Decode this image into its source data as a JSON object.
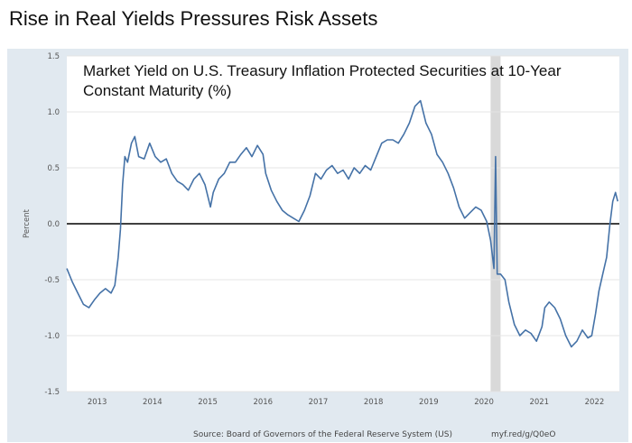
{
  "header": {
    "title": "Rise in Real Yields Pressures Risk Assets"
  },
  "chart_data": {
    "type": "line",
    "title": "Market Yield on U.S. Treasury Inflation Protected Securities at 10-Year",
    "title_line2": "Constant Maturity (%)",
    "xlabel": "",
    "ylabel": "Percent",
    "ylim": [
      -1.5,
      1.5
    ],
    "xlim": [
      2012.45,
      2022.45
    ],
    "y_ticks": [
      "1.5",
      "1.0",
      "0.5",
      "0.0",
      "-0.5",
      "-1.0",
      "-1.5"
    ],
    "x_ticks": [
      "2013",
      "2014",
      "2015",
      "2016",
      "2017",
      "2018",
      "2019",
      "2020",
      "2021",
      "2022"
    ],
    "grid": true,
    "line_color": "#4572a7",
    "zero_line": true,
    "recession_shading": {
      "start": 2020.12,
      "end": 2020.3,
      "color": "#d9d9d9"
    },
    "series": [
      {
        "values": [
          [
            2012.45,
            -0.4
          ],
          [
            2012.55,
            -0.52
          ],
          [
            2012.65,
            -0.62
          ],
          [
            2012.75,
            -0.72
          ],
          [
            2012.85,
            -0.75
          ],
          [
            2012.95,
            -0.68
          ],
          [
            2013.05,
            -0.62
          ],
          [
            2013.15,
            -0.58
          ],
          [
            2013.25,
            -0.62
          ],
          [
            2013.32,
            -0.55
          ],
          [
            2013.38,
            -0.3
          ],
          [
            2013.42,
            -0.05
          ],
          [
            2013.46,
            0.35
          ],
          [
            2013.5,
            0.6
          ],
          [
            2013.55,
            0.55
          ],
          [
            2013.62,
            0.72
          ],
          [
            2013.68,
            0.78
          ],
          [
            2013.75,
            0.6
          ],
          [
            2013.85,
            0.58
          ],
          [
            2013.95,
            0.72
          ],
          [
            2014.05,
            0.6
          ],
          [
            2014.15,
            0.55
          ],
          [
            2014.25,
            0.58
          ],
          [
            2014.35,
            0.45
          ],
          [
            2014.45,
            0.38
          ],
          [
            2014.55,
            0.35
          ],
          [
            2014.65,
            0.3
          ],
          [
            2014.75,
            0.4
          ],
          [
            2014.85,
            0.45
          ],
          [
            2014.95,
            0.35
          ],
          [
            2015.05,
            0.15
          ],
          [
            2015.1,
            0.28
          ],
          [
            2015.2,
            0.4
          ],
          [
            2015.3,
            0.45
          ],
          [
            2015.4,
            0.55
          ],
          [
            2015.5,
            0.55
          ],
          [
            2015.6,
            0.62
          ],
          [
            2015.7,
            0.68
          ],
          [
            2015.8,
            0.6
          ],
          [
            2015.9,
            0.7
          ],
          [
            2016.0,
            0.62
          ],
          [
            2016.05,
            0.45
          ],
          [
            2016.15,
            0.3
          ],
          [
            2016.25,
            0.2
          ],
          [
            2016.35,
            0.12
          ],
          [
            2016.45,
            0.08
          ],
          [
            2016.55,
            0.05
          ],
          [
            2016.65,
            0.02
          ],
          [
            2016.75,
            0.12
          ],
          [
            2016.85,
            0.25
          ],
          [
            2016.95,
            0.45
          ],
          [
            2017.05,
            0.4
          ],
          [
            2017.15,
            0.48
          ],
          [
            2017.25,
            0.52
          ],
          [
            2017.35,
            0.45
          ],
          [
            2017.45,
            0.48
          ],
          [
            2017.55,
            0.4
          ],
          [
            2017.65,
            0.5
          ],
          [
            2017.75,
            0.45
          ],
          [
            2017.85,
            0.52
          ],
          [
            2017.95,
            0.48
          ],
          [
            2018.05,
            0.6
          ],
          [
            2018.15,
            0.72
          ],
          [
            2018.25,
            0.75
          ],
          [
            2018.35,
            0.75
          ],
          [
            2018.45,
            0.72
          ],
          [
            2018.55,
            0.8
          ],
          [
            2018.65,
            0.9
          ],
          [
            2018.75,
            1.05
          ],
          [
            2018.85,
            1.1
          ],
          [
            2018.95,
            0.9
          ],
          [
            2019.05,
            0.8
          ],
          [
            2019.15,
            0.62
          ],
          [
            2019.25,
            0.55
          ],
          [
            2019.35,
            0.45
          ],
          [
            2019.45,
            0.32
          ],
          [
            2019.55,
            0.15
          ],
          [
            2019.65,
            0.05
          ],
          [
            2019.75,
            0.1
          ],
          [
            2019.85,
            0.15
          ],
          [
            2019.95,
            0.12
          ],
          [
            2020.05,
            0.02
          ],
          [
            2020.12,
            -0.15
          ],
          [
            2020.18,
            -0.4
          ],
          [
            2020.21,
            0.6
          ],
          [
            2020.24,
            -0.45
          ],
          [
            2020.3,
            -0.45
          ],
          [
            2020.38,
            -0.5
          ],
          [
            2020.45,
            -0.7
          ],
          [
            2020.55,
            -0.9
          ],
          [
            2020.65,
            -1.0
          ],
          [
            2020.75,
            -0.95
          ],
          [
            2020.85,
            -0.98
          ],
          [
            2020.95,
            -1.05
          ],
          [
            2021.05,
            -0.92
          ],
          [
            2021.1,
            -0.75
          ],
          [
            2021.18,
            -0.7
          ],
          [
            2021.28,
            -0.75
          ],
          [
            2021.38,
            -0.85
          ],
          [
            2021.48,
            -1.0
          ],
          [
            2021.58,
            -1.1
          ],
          [
            2021.68,
            -1.05
          ],
          [
            2021.78,
            -0.95
          ],
          [
            2021.88,
            -1.02
          ],
          [
            2021.95,
            -1.0
          ],
          [
            2022.02,
            -0.8
          ],
          [
            2022.08,
            -0.6
          ],
          [
            2022.15,
            -0.45
          ],
          [
            2022.22,
            -0.3
          ],
          [
            2022.28,
            0.0
          ],
          [
            2022.33,
            0.2
          ],
          [
            2022.38,
            0.28
          ],
          [
            2022.42,
            0.2
          ]
        ]
      }
    ]
  },
  "footer": {
    "source": "Source: Board of Governors of the Federal Reserve System (US)",
    "link": "myf.red/g/Q0eO"
  }
}
